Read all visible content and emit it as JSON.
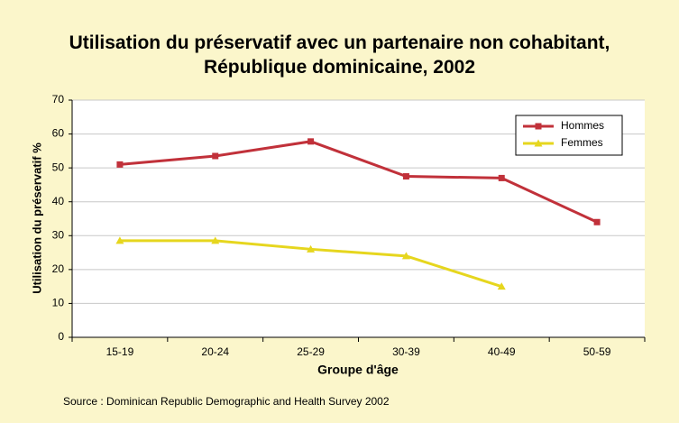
{
  "chart_data": {
    "type": "line",
    "title": "Utilisation du préservatif avec un partenaire non cohabitant, République dominicaine, 2002",
    "x_label": "Groupe d'âge",
    "y_label": "Utilisation du préservatif %",
    "source": "Source : Dominican Republic Demographic and Health Survey 2002",
    "categories": [
      "15-19",
      "20-24",
      "25-29",
      "30-39",
      "40-49",
      "50-59"
    ],
    "series": [
      {
        "name": "Hommes",
        "color": "#c1313a",
        "marker": "square",
        "values": [
          51,
          53.5,
          57.8,
          47.5,
          47,
          34
        ]
      },
      {
        "name": "Femmes",
        "color": "#e6d61e",
        "marker": "triangle",
        "values": [
          28.5,
          28.5,
          26,
          24,
          15,
          null
        ]
      }
    ],
    "ylim": [
      0,
      70
    ],
    "yticks": [
      0,
      10,
      20,
      30,
      40,
      50,
      60,
      70
    ],
    "grid": true,
    "legend": "upper right"
  }
}
